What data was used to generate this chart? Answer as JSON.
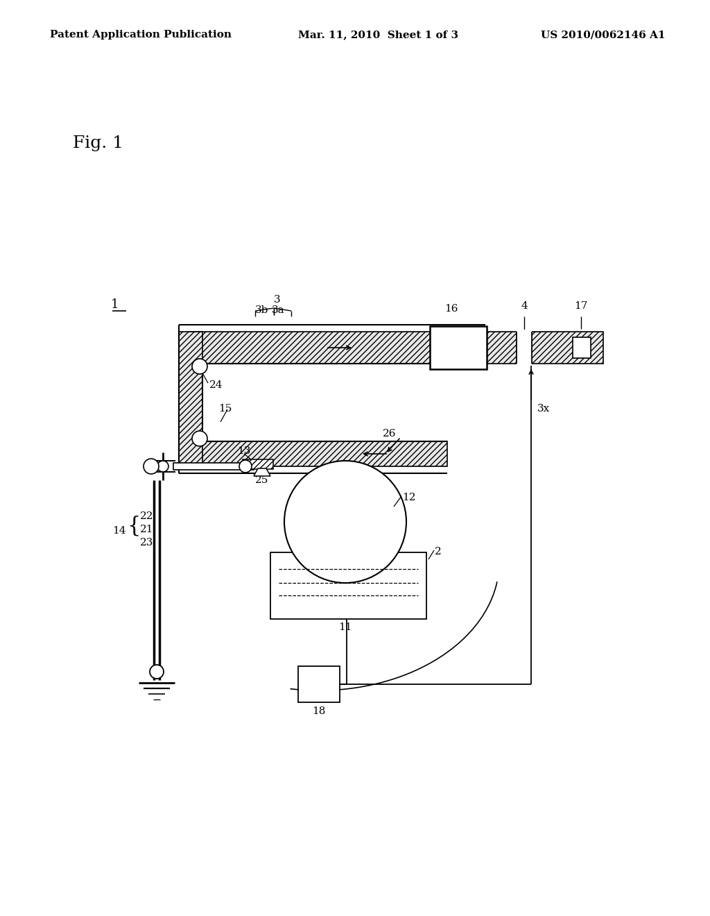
{
  "header_left": "Patent Application Publication",
  "header_center": "Mar. 11, 2010  Sheet 1 of 3",
  "header_right": "US 2010/0062146 A1",
  "fig_label": "Fig. 1",
  "background_color": "#ffffff",
  "header_fontsize": 11,
  "label_fontsize": 11,
  "fig_label_fontsize": 18
}
